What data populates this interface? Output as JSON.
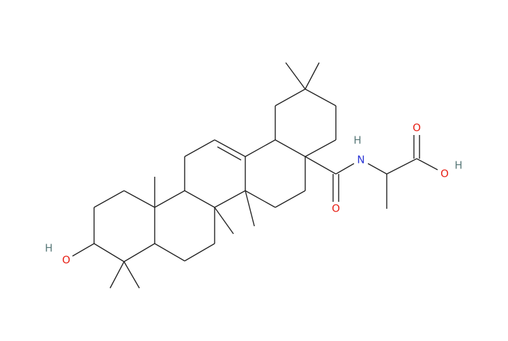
{
  "atoms": {
    "hydroxyl_h": "H",
    "hydroxyl_o": "O",
    "amide_n": "N",
    "amide_h": "H",
    "carbonyl_o": "O",
    "acid_o": "O",
    "acid_oh_o": "O",
    "acid_oh_h": "H"
  }
}
